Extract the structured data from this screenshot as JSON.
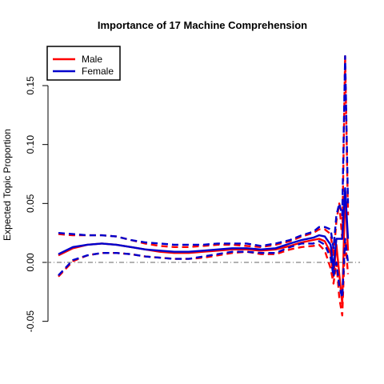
{
  "chart_data": {
    "type": "line",
    "title": "Importance of 17 Machine Comprehension",
    "xlabel": "",
    "ylabel": "Expected Topic Proportion",
    "ylim": [
      -0.05,
      0.17
    ],
    "xlim": [
      0,
      1
    ],
    "yticks": [
      "-0.05",
      "0.00",
      "0.05",
      "0.10",
      "0.15"
    ],
    "ytick_values": [
      -0.05,
      0.0,
      0.05,
      0.1,
      0.15
    ],
    "reference_line": 0.0,
    "legend": {
      "position": "top-left",
      "entries": [
        "Male",
        "Female"
      ]
    },
    "grid": false,
    "x_axis_shown": false,
    "x": [
      0.0,
      0.05,
      0.1,
      0.15,
      0.2,
      0.25,
      0.3,
      0.35,
      0.4,
      0.45,
      0.5,
      0.55,
      0.6,
      0.65,
      0.7,
      0.75,
      0.8,
      0.84,
      0.88,
      0.9,
      0.92,
      0.94,
      0.95,
      0.96,
      0.97,
      0.98,
      0.99,
      1.0
    ],
    "series": [
      {
        "name": "Male",
        "color": "#ff0000",
        "values": [
          0.006,
          0.012,
          0.015,
          0.016,
          0.015,
          0.013,
          0.011,
          0.009,
          0.008,
          0.008,
          0.009,
          0.01,
          0.011,
          0.011,
          0.01,
          0.011,
          0.014,
          0.017,
          0.019,
          0.02,
          0.018,
          0.008,
          -0.012,
          0.015,
          -0.01,
          -0.035,
          0.06,
          0.01
        ],
        "lower": [
          -0.012,
          0.001,
          0.006,
          0.008,
          0.008,
          0.007,
          0.005,
          0.004,
          0.003,
          0.003,
          0.004,
          0.006,
          0.008,
          0.009,
          0.007,
          0.007,
          0.011,
          0.013,
          0.014,
          0.015,
          0.01,
          -0.005,
          -0.018,
          0.0,
          -0.03,
          -0.045,
          0.02,
          -0.01
        ],
        "upper": [
          0.024,
          0.023,
          0.023,
          0.023,
          0.022,
          0.019,
          0.016,
          0.014,
          0.013,
          0.013,
          0.014,
          0.015,
          0.015,
          0.014,
          0.013,
          0.015,
          0.018,
          0.022,
          0.025,
          0.028,
          0.028,
          0.024,
          0.005,
          0.035,
          0.05,
          0.02,
          0.175,
          0.04
        ]
      },
      {
        "name": "Female",
        "color": "#0000cd",
        "values": [
          0.007,
          0.013,
          0.015,
          0.016,
          0.015,
          0.013,
          0.011,
          0.01,
          0.009,
          0.009,
          0.01,
          0.011,
          0.012,
          0.012,
          0.011,
          0.012,
          0.016,
          0.019,
          0.021,
          0.023,
          0.022,
          0.015,
          -0.005,
          0.02,
          0.02,
          0.02,
          0.063,
          0.02
        ],
        "lower": [
          -0.011,
          0.002,
          0.006,
          0.008,
          0.008,
          0.007,
          0.005,
          0.004,
          0.003,
          0.003,
          0.005,
          0.007,
          0.009,
          0.009,
          0.008,
          0.008,
          0.013,
          0.016,
          0.016,
          0.018,
          0.015,
          0.004,
          -0.012,
          0.0,
          -0.02,
          -0.03,
          0.02,
          0.0
        ],
        "upper": [
          0.025,
          0.024,
          0.023,
          0.023,
          0.022,
          0.019,
          0.017,
          0.016,
          0.015,
          0.015,
          0.015,
          0.016,
          0.016,
          0.016,
          0.014,
          0.016,
          0.019,
          0.023,
          0.026,
          0.03,
          0.03,
          0.028,
          0.012,
          0.04,
          0.05,
          0.04,
          0.175,
          0.05
        ]
      }
    ]
  }
}
